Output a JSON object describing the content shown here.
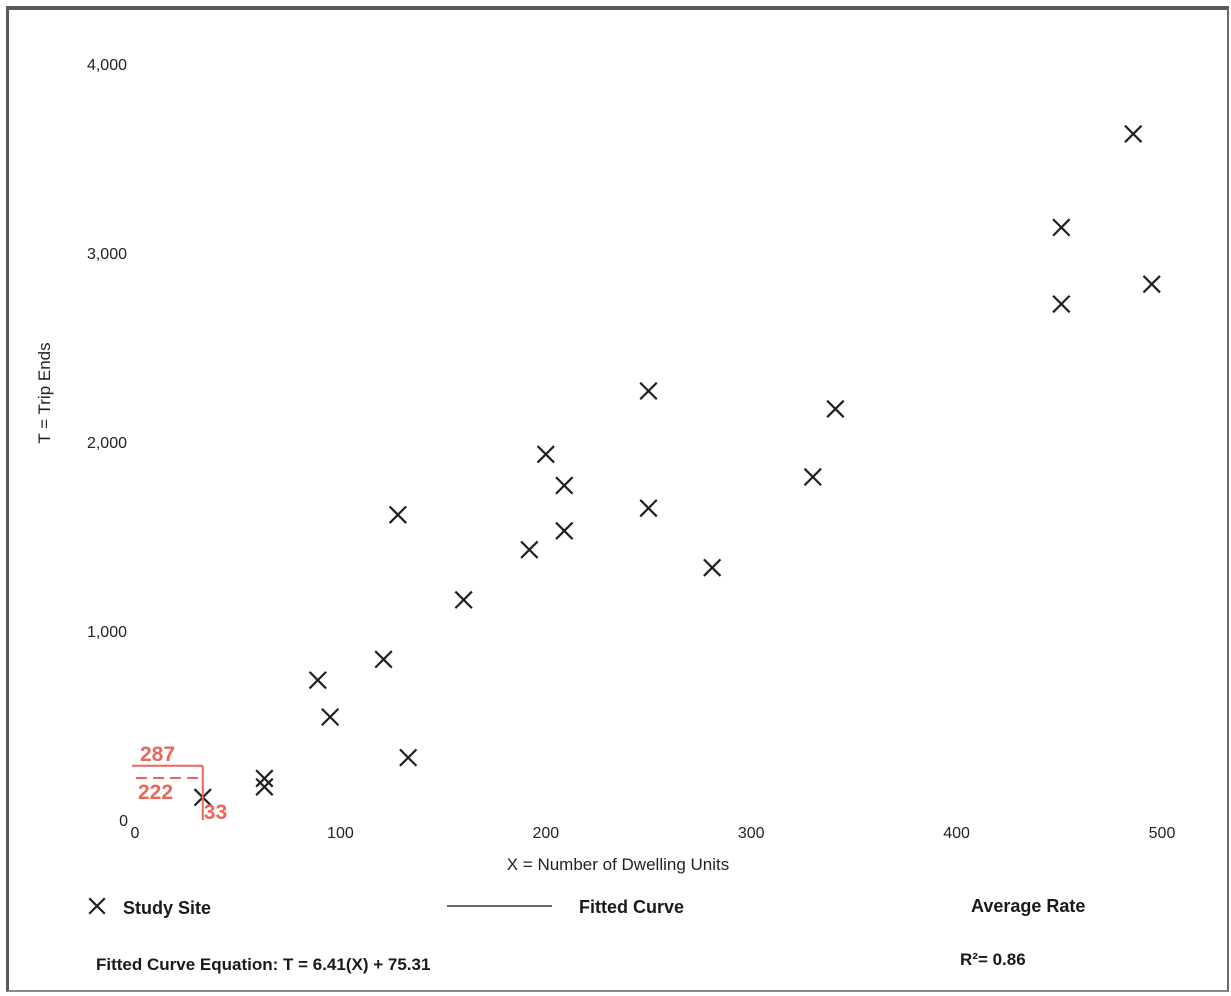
{
  "chart_data": {
    "type": "scatter",
    "xlabel": "X = Number of Dwelling Units",
    "ylabel": "T = Trip Ends",
    "xlim": [
      0,
      520
    ],
    "ylim": [
      0,
      4000
    ],
    "x_ticks": [
      "0",
      "100",
      "200",
      "300",
      "400",
      "500"
    ],
    "y_ticks": [
      "0",
      "1,000",
      "2,000",
      "3,000",
      "4,000"
    ],
    "x_tick_values": [
      0,
      100,
      200,
      300,
      400,
      500
    ],
    "y_tick_values": [
      0,
      1000,
      2000,
      3000,
      4000
    ],
    "grid": false,
    "points": [
      {
        "x": 33,
        "y": 120
      },
      {
        "x": 63,
        "y": 220
      },
      {
        "x": 63,
        "y": 175
      },
      {
        "x": 89,
        "y": 740
      },
      {
        "x": 95,
        "y": 545
      },
      {
        "x": 121,
        "y": 850
      },
      {
        "x": 128,
        "y": 1615
      },
      {
        "x": 133,
        "y": 330
      },
      {
        "x": 160,
        "y": 1165
      },
      {
        "x": 192,
        "y": 1430
      },
      {
        "x": 200,
        "y": 1935
      },
      {
        "x": 209,
        "y": 1770
      },
      {
        "x": 209,
        "y": 1530
      },
      {
        "x": 250,
        "y": 2270
      },
      {
        "x": 250,
        "y": 1650
      },
      {
        "x": 281,
        "y": 1335
      },
      {
        "x": 330,
        "y": 1815
      },
      {
        "x": 341,
        "y": 2175
      },
      {
        "x": 451,
        "y": 3135
      },
      {
        "x": 451,
        "y": 2730
      },
      {
        "x": 486,
        "y": 3630
      },
      {
        "x": 495,
        "y": 2835
      }
    ],
    "annotation": {
      "x_value": 33,
      "x_label": "33",
      "y_high_value": 287,
      "y_high_label": "287",
      "y_low_value": 222,
      "y_low_label": "222",
      "color": "#e8675a"
    },
    "legend": {
      "study_site": "Study Site",
      "fitted_curve": "Fitted Curve",
      "average_rate": "Average Rate"
    },
    "equation": "Fitted Curve Equation: T = 6.41(X) + 75.31",
    "r_squared": "R²= 0.86"
  }
}
